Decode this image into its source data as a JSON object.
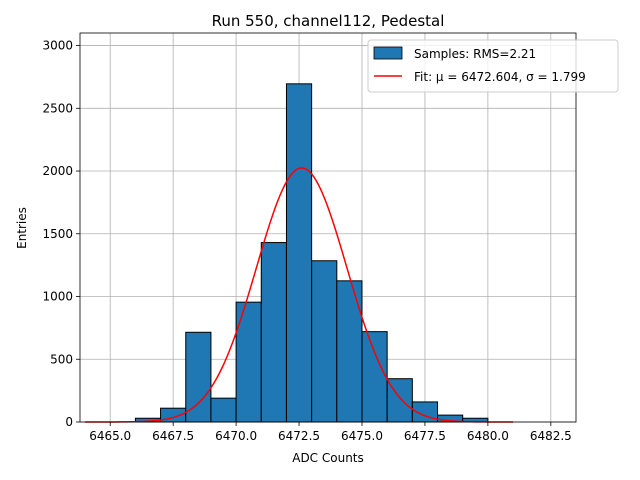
{
  "chart_data": {
    "type": "bar",
    "title": "Run 550, channel112, Pedestal",
    "xlabel": "ADC Counts",
    "ylabel": "Entries",
    "xlim": [
      6463.8,
      6483.5
    ],
    "ylim": [
      0,
      3100
    ],
    "xticks": [
      6465.0,
      6467.5,
      6470.0,
      6472.5,
      6475.0,
      6477.5,
      6480.0,
      6482.5
    ],
    "xtick_labels": [
      "6465.0",
      "6467.5",
      "6470.0",
      "6472.5",
      "6475.0",
      "6477.5",
      "6480.0",
      "6482.5"
    ],
    "yticks": [
      0,
      500,
      1000,
      1500,
      2000,
      2500,
      3000
    ],
    "ytick_labels": [
      "0",
      "500",
      "1000",
      "1500",
      "2000",
      "2500",
      "3000"
    ],
    "grid": true,
    "legend_position": "top-right",
    "bin_width": 1.0,
    "bins": [
      {
        "left": 6466.0,
        "value": 30
      },
      {
        "left": 6467.0,
        "value": 110
      },
      {
        "left": 6468.0,
        "value": 715
      },
      {
        "left": 6469.0,
        "value": 190
      },
      {
        "left": 6470.0,
        "value": 955
      },
      {
        "left": 6471.0,
        "value": 1430
      },
      {
        "left": 6472.0,
        "value": 2695
      },
      {
        "left": 6473.0,
        "value": 1285
      },
      {
        "left": 6474.0,
        "value": 1125
      },
      {
        "left": 6475.0,
        "value": 720
      },
      {
        "left": 6476.0,
        "value": 345
      },
      {
        "left": 6477.0,
        "value": 160
      },
      {
        "left": 6478.0,
        "value": 55
      },
      {
        "left": 6479.0,
        "value": 30
      }
    ],
    "fit": {
      "mu": 6472.604,
      "sigma": 1.799,
      "peak": 2025,
      "x_range": [
        6464.0,
        6481.0
      ]
    },
    "series": [
      {
        "name": "Samples: RMS=2.21",
        "color": "#1f77b4",
        "kind": "histogram"
      },
      {
        "name": "Fit: μ = 6472.604, σ = 1.799",
        "color": "#ff0000",
        "kind": "line"
      }
    ]
  }
}
